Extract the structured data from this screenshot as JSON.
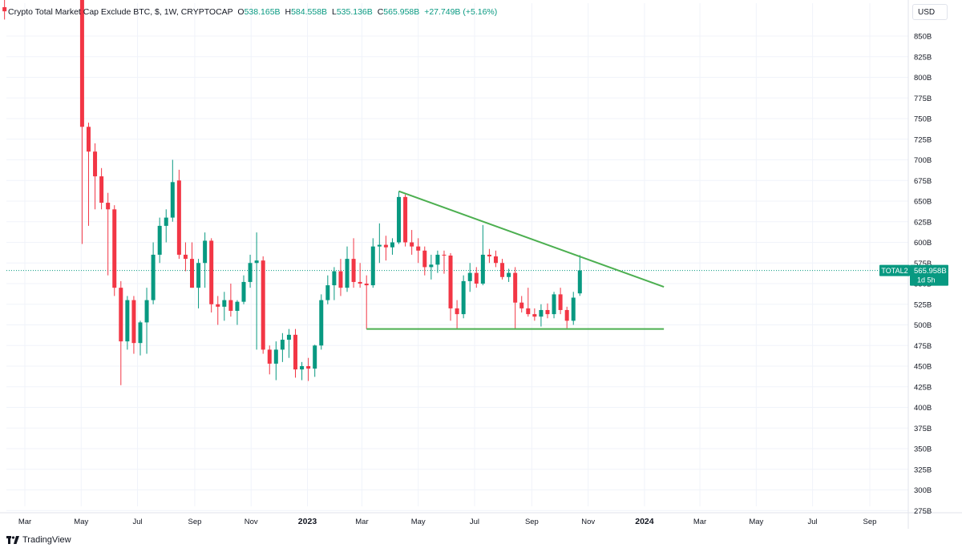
{
  "legend": {
    "title": "Crypto Total Market Cap Exclude BTC, $, 1W, CRYPTOCAP",
    "o_label": "O",
    "o_value": "538.165B",
    "h_label": "H",
    "h_value": "584.558B",
    "l_label": "L",
    "l_value": "535.136B",
    "c_label": "C",
    "c_value": "565.958B",
    "change": "+27.749B (+5.16%)"
  },
  "currency_button": "USD",
  "price_tag": {
    "symbol": "TOTAL2",
    "price": "565.958B",
    "countdown": "1d 5h"
  },
  "footer": {
    "brand": "TradingView"
  },
  "colors": {
    "up": "#089981",
    "down": "#f23645",
    "trendline": "#4caf50",
    "grid": "#f0f3fa"
  },
  "chart_data": {
    "type": "candlestick",
    "y_unit": "B",
    "ylim": [
      268,
      905
    ],
    "y_ticks": [
      275,
      300,
      325,
      350,
      375,
      400,
      425,
      450,
      475,
      500,
      525,
      550,
      575,
      600,
      625,
      650,
      675,
      700,
      725,
      750,
      775,
      800,
      825,
      850
    ],
    "y_tick_labels": [
      "275B",
      "300B",
      "325B",
      "350B",
      "375B",
      "400B",
      "425B",
      "450B",
      "475B",
      "500B",
      "525B",
      "550B",
      "575B",
      "600B",
      "625B",
      "650B",
      "675B",
      "700B",
      "725B",
      "750B",
      "775B",
      "800B",
      "825B",
      "850B"
    ],
    "x_ticks": [
      {
        "date": "2022-03-01",
        "label": "Mar"
      },
      {
        "date": "2022-05-01",
        "label": "May"
      },
      {
        "date": "2022-07-01",
        "label": "Jul"
      },
      {
        "date": "2022-09-01",
        "label": "Sep"
      },
      {
        "date": "2022-11-01",
        "label": "Nov"
      },
      {
        "date": "2023-01-01",
        "label": "2023"
      },
      {
        "date": "2023-03-01",
        "label": "Mar"
      },
      {
        "date": "2023-05-01",
        "label": "May"
      },
      {
        "date": "2023-07-01",
        "label": "Jul"
      },
      {
        "date": "2023-09-01",
        "label": "Sep"
      },
      {
        "date": "2023-11-01",
        "label": "Nov"
      },
      {
        "date": "2024-01-01",
        "label": "2024"
      },
      {
        "date": "2024-03-01",
        "label": "Mar"
      },
      {
        "date": "2024-05-01",
        "label": "May"
      },
      {
        "date": "2024-07-01",
        "label": "Jul"
      },
      {
        "date": "2024-09-01",
        "label": "Sep"
      }
    ],
    "candles": [
      {
        "date": "2022-02-07",
        "o": 885,
        "h": 905,
        "l": 870,
        "c": 880
      },
      {
        "date": "2022-05-02",
        "o": 905,
        "h": 905,
        "l": 598,
        "c": 740
      },
      {
        "date": "2022-05-09",
        "o": 740,
        "h": 745,
        "l": 620,
        "c": 710
      },
      {
        "date": "2022-05-16",
        "o": 710,
        "h": 720,
        "l": 640,
        "c": 680
      },
      {
        "date": "2022-05-23",
        "o": 680,
        "h": 690,
        "l": 640,
        "c": 648
      },
      {
        "date": "2022-05-30",
        "o": 648,
        "h": 660,
        "l": 560,
        "c": 640
      },
      {
        "date": "2022-06-06",
        "o": 640,
        "h": 645,
        "l": 535,
        "c": 545
      },
      {
        "date": "2022-06-13",
        "o": 545,
        "h": 553,
        "l": 427,
        "c": 480
      },
      {
        "date": "2022-06-20",
        "o": 480,
        "h": 535,
        "l": 470,
        "c": 530
      },
      {
        "date": "2022-06-27",
        "o": 530,
        "h": 535,
        "l": 465,
        "c": 478
      },
      {
        "date": "2022-07-04",
        "o": 478,
        "h": 505,
        "l": 463,
        "c": 503
      },
      {
        "date": "2022-07-11",
        "o": 503,
        "h": 545,
        "l": 465,
        "c": 530
      },
      {
        "date": "2022-07-18",
        "o": 530,
        "h": 600,
        "l": 525,
        "c": 585
      },
      {
        "date": "2022-07-25",
        "o": 585,
        "h": 630,
        "l": 575,
        "c": 620
      },
      {
        "date": "2022-08-01",
        "o": 620,
        "h": 640,
        "l": 600,
        "c": 630
      },
      {
        "date": "2022-08-08",
        "o": 630,
        "h": 700,
        "l": 625,
        "c": 673
      },
      {
        "date": "2022-08-15",
        "o": 675,
        "h": 688,
        "l": 580,
        "c": 585
      },
      {
        "date": "2022-08-22",
        "o": 585,
        "h": 600,
        "l": 565,
        "c": 580
      },
      {
        "date": "2022-08-29",
        "o": 580,
        "h": 600,
        "l": 545,
        "c": 545
      },
      {
        "date": "2022-09-05",
        "o": 545,
        "h": 580,
        "l": 520,
        "c": 575
      },
      {
        "date": "2022-09-12",
        "o": 575,
        "h": 612,
        "l": 545,
        "c": 602
      },
      {
        "date": "2022-09-19",
        "o": 602,
        "h": 605,
        "l": 515,
        "c": 525
      },
      {
        "date": "2022-09-26",
        "o": 525,
        "h": 535,
        "l": 500,
        "c": 522
      },
      {
        "date": "2022-10-03",
        "o": 522,
        "h": 540,
        "l": 505,
        "c": 530
      },
      {
        "date": "2022-10-10",
        "o": 530,
        "h": 550,
        "l": 510,
        "c": 517
      },
      {
        "date": "2022-10-17",
        "o": 517,
        "h": 530,
        "l": 500,
        "c": 528
      },
      {
        "date": "2022-10-24",
        "o": 528,
        "h": 560,
        "l": 525,
        "c": 552
      },
      {
        "date": "2022-10-31",
        "o": 552,
        "h": 585,
        "l": 545,
        "c": 575
      },
      {
        "date": "2022-11-07",
        "o": 575,
        "h": 612,
        "l": 470,
        "c": 578
      },
      {
        "date": "2022-11-14",
        "o": 578,
        "h": 583,
        "l": 465,
        "c": 470
      },
      {
        "date": "2022-11-21",
        "o": 470,
        "h": 475,
        "l": 440,
        "c": 453
      },
      {
        "date": "2022-11-28",
        "o": 453,
        "h": 480,
        "l": 433,
        "c": 470
      },
      {
        "date": "2022-12-05",
        "o": 470,
        "h": 490,
        "l": 455,
        "c": 482
      },
      {
        "date": "2022-12-12",
        "o": 482,
        "h": 495,
        "l": 460,
        "c": 488
      },
      {
        "date": "2022-12-19",
        "o": 488,
        "h": 495,
        "l": 436,
        "c": 446
      },
      {
        "date": "2022-12-26",
        "o": 446,
        "h": 455,
        "l": 433,
        "c": 450
      },
      {
        "date": "2023-01-02",
        "o": 450,
        "h": 460,
        "l": 432,
        "c": 447
      },
      {
        "date": "2023-01-09",
        "o": 447,
        "h": 476,
        "l": 437,
        "c": 475
      },
      {
        "date": "2023-01-16",
        "o": 475,
        "h": 537,
        "l": 470,
        "c": 530
      },
      {
        "date": "2023-01-23",
        "o": 530,
        "h": 560,
        "l": 525,
        "c": 548
      },
      {
        "date": "2023-01-30",
        "o": 548,
        "h": 570,
        "l": 530,
        "c": 565
      },
      {
        "date": "2023-02-06",
        "o": 565,
        "h": 580,
        "l": 535,
        "c": 545
      },
      {
        "date": "2023-02-13",
        "o": 545,
        "h": 595,
        "l": 540,
        "c": 580
      },
      {
        "date": "2023-02-20",
        "o": 580,
        "h": 605,
        "l": 545,
        "c": 552
      },
      {
        "date": "2023-02-27",
        "o": 552,
        "h": 575,
        "l": 545,
        "c": 550
      },
      {
        "date": "2023-03-06",
        "o": 550,
        "h": 560,
        "l": 495,
        "c": 548
      },
      {
        "date": "2023-03-13",
        "o": 548,
        "h": 605,
        "l": 545,
        "c": 595
      },
      {
        "date": "2023-03-20",
        "o": 595,
        "h": 623,
        "l": 575,
        "c": 597
      },
      {
        "date": "2023-03-27",
        "o": 597,
        "h": 608,
        "l": 578,
        "c": 594
      },
      {
        "date": "2023-04-03",
        "o": 594,
        "h": 605,
        "l": 585,
        "c": 600
      },
      {
        "date": "2023-04-10",
        "o": 600,
        "h": 662,
        "l": 598,
        "c": 655
      },
      {
        "date": "2023-04-17",
        "o": 655,
        "h": 658,
        "l": 595,
        "c": 600
      },
      {
        "date": "2023-04-24",
        "o": 600,
        "h": 615,
        "l": 585,
        "c": 595
      },
      {
        "date": "2023-05-01",
        "o": 595,
        "h": 605,
        "l": 575,
        "c": 590
      },
      {
        "date": "2023-05-08",
        "o": 590,
        "h": 595,
        "l": 560,
        "c": 570
      },
      {
        "date": "2023-05-15",
        "o": 570,
        "h": 585,
        "l": 555,
        "c": 573
      },
      {
        "date": "2023-05-22",
        "o": 573,
        "h": 590,
        "l": 563,
        "c": 585
      },
      {
        "date": "2023-05-29",
        "o": 585,
        "h": 590,
        "l": 562,
        "c": 584
      },
      {
        "date": "2023-06-05",
        "o": 584,
        "h": 587,
        "l": 505,
        "c": 520
      },
      {
        "date": "2023-06-12",
        "o": 520,
        "h": 530,
        "l": 495,
        "c": 513
      },
      {
        "date": "2023-06-19",
        "o": 513,
        "h": 560,
        "l": 508,
        "c": 553
      },
      {
        "date": "2023-06-26",
        "o": 553,
        "h": 575,
        "l": 540,
        "c": 563
      },
      {
        "date": "2023-07-03",
        "o": 563,
        "h": 570,
        "l": 545,
        "c": 550
      },
      {
        "date": "2023-07-10",
        "o": 550,
        "h": 621,
        "l": 548,
        "c": 585
      },
      {
        "date": "2023-07-17",
        "o": 585,
        "h": 592,
        "l": 575,
        "c": 583
      },
      {
        "date": "2023-07-24",
        "o": 583,
        "h": 590,
        "l": 570,
        "c": 575
      },
      {
        "date": "2023-07-31",
        "o": 575,
        "h": 580,
        "l": 555,
        "c": 558
      },
      {
        "date": "2023-08-07",
        "o": 558,
        "h": 568,
        "l": 552,
        "c": 563
      },
      {
        "date": "2023-08-14",
        "o": 563,
        "h": 570,
        "l": 495,
        "c": 527
      },
      {
        "date": "2023-08-21",
        "o": 527,
        "h": 535,
        "l": 515,
        "c": 520
      },
      {
        "date": "2023-08-28",
        "o": 520,
        "h": 545,
        "l": 510,
        "c": 513
      },
      {
        "date": "2023-09-04",
        "o": 513,
        "h": 520,
        "l": 505,
        "c": 510
      },
      {
        "date": "2023-09-11",
        "o": 510,
        "h": 525,
        "l": 498,
        "c": 518
      },
      {
        "date": "2023-09-18",
        "o": 518,
        "h": 526,
        "l": 508,
        "c": 513
      },
      {
        "date": "2023-09-25",
        "o": 513,
        "h": 540,
        "l": 508,
        "c": 537
      },
      {
        "date": "2023-10-02",
        "o": 537,
        "h": 545,
        "l": 513,
        "c": 518
      },
      {
        "date": "2023-10-09",
        "o": 518,
        "h": 522,
        "l": 496,
        "c": 505
      },
      {
        "date": "2023-10-16",
        "o": 505,
        "h": 540,
        "l": 500,
        "c": 533
      },
      {
        "date": "2023-10-23",
        "o": 538.165,
        "h": 584.558,
        "l": 535.136,
        "c": 565.958
      }
    ],
    "trendlines": [
      {
        "name": "descending-resistance",
        "from": {
          "date": "2023-04-10",
          "value": 662
        },
        "to": {
          "date": "2024-01-22",
          "value": 546
        }
      },
      {
        "name": "horizontal-support",
        "from": {
          "date": "2023-03-06",
          "value": 495
        },
        "to": {
          "date": "2024-01-22",
          "value": 495
        }
      }
    ],
    "last_price": 565.958
  }
}
